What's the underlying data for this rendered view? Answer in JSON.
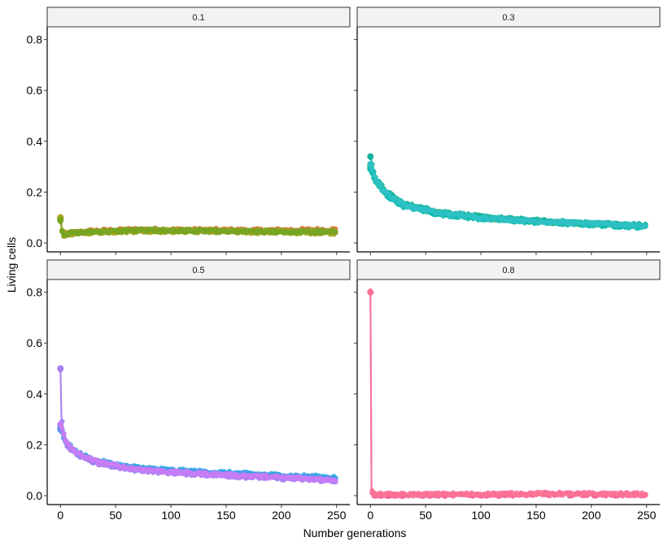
{
  "chart_data": {
    "type": "line",
    "xlabel": "Number generations",
    "ylabel": "Living cells",
    "xlim": [
      -12,
      262
    ],
    "ylim": [
      -0.035,
      0.85
    ],
    "x_ticks": [
      0,
      50,
      100,
      150,
      200,
      250
    ],
    "y_ticks": [
      0.0,
      0.2,
      0.4,
      0.6,
      0.8
    ],
    "x_tick_labels": [
      "0",
      "50",
      "100",
      "150",
      "200",
      "250"
    ],
    "y_tick_labels": [
      "0.0",
      "0.2",
      "0.4",
      "0.6",
      "0.8"
    ],
    "grid": false,
    "legend": "none",
    "panels": [
      {
        "label": "0.1",
        "series": [
          {
            "color": "#d97a35",
            "points": [
              [
                0,
                0.1
              ],
              [
                2,
                0.035
              ],
              [
                10,
                0.04
              ],
              [
                30,
                0.048
              ],
              [
                70,
                0.053
              ],
              [
                120,
                0.052
              ],
              [
                180,
                0.05
              ],
              [
                250,
                0.053
              ]
            ]
          },
          {
            "color": "#8aa22a",
            "points": [
              [
                0,
                0.095
              ],
              [
                2,
                0.032
              ],
              [
                10,
                0.038
              ],
              [
                30,
                0.045
              ],
              [
                70,
                0.05
              ],
              [
                120,
                0.049
              ],
              [
                180,
                0.046
              ],
              [
                250,
                0.045
              ]
            ]
          },
          {
            "color": "#a5a316",
            "points": [
              [
                0,
                0.1
              ],
              [
                2,
                0.03
              ],
              [
                10,
                0.036
              ],
              [
                30,
                0.042
              ],
              [
                70,
                0.047
              ],
              [
                120,
                0.046
              ],
              [
                180,
                0.043
              ],
              [
                250,
                0.04
              ]
            ]
          },
          {
            "color": "#77a522",
            "points": [
              [
                0,
                0.09
              ],
              [
                2,
                0.034
              ],
              [
                10,
                0.039
              ],
              [
                30,
                0.044
              ],
              [
                70,
                0.049
              ],
              [
                120,
                0.047
              ],
              [
                180,
                0.044
              ],
              [
                250,
                0.042
              ]
            ]
          }
        ]
      },
      {
        "label": "0.3",
        "series": [
          {
            "color": "#2fb34a",
            "points": [
              [
                0,
                0.3
              ],
              [
                5,
                0.24
              ],
              [
                15,
                0.19
              ],
              [
                30,
                0.15
              ],
              [
                60,
                0.12
              ],
              [
                100,
                0.1
              ],
              [
                150,
                0.085
              ],
              [
                200,
                0.075
              ],
              [
                250,
                0.065
              ]
            ]
          },
          {
            "color": "#15b59b",
            "points": [
              [
                0,
                0.34
              ],
              [
                5,
                0.25
              ],
              [
                15,
                0.2
              ],
              [
                30,
                0.155
              ],
              [
                60,
                0.125
              ],
              [
                100,
                0.103
              ],
              [
                150,
                0.088
              ],
              [
                200,
                0.078
              ],
              [
                250,
                0.07
              ]
            ]
          },
          {
            "color": "#0fbbb1",
            "points": [
              [
                0,
                0.29
              ],
              [
                5,
                0.235
              ],
              [
                15,
                0.185
              ],
              [
                30,
                0.145
              ],
              [
                60,
                0.115
              ],
              [
                100,
                0.095
              ],
              [
                150,
                0.082
              ],
              [
                200,
                0.072
              ],
              [
                250,
                0.062
              ]
            ]
          },
          {
            "color": "#2ec1c4",
            "points": [
              [
                0,
                0.31
              ],
              [
                5,
                0.245
              ],
              [
                15,
                0.195
              ],
              [
                30,
                0.15
              ],
              [
                60,
                0.12
              ],
              [
                100,
                0.1
              ],
              [
                150,
                0.086
              ],
              [
                200,
                0.076
              ],
              [
                250,
                0.068
              ]
            ]
          }
        ]
      },
      {
        "label": "0.5",
        "series": [
          {
            "color": "#29a8e0",
            "points": [
              [
                0,
                0.27
              ],
              [
                5,
                0.21
              ],
              [
                15,
                0.17
              ],
              [
                30,
                0.14
              ],
              [
                60,
                0.115
              ],
              [
                100,
                0.1
              ],
              [
                150,
                0.09
              ],
              [
                200,
                0.08
              ],
              [
                250,
                0.072
              ]
            ]
          },
          {
            "color": "#5b93f0",
            "points": [
              [
                0,
                0.26
              ],
              [
                5,
                0.205
              ],
              [
                15,
                0.165
              ],
              [
                30,
                0.135
              ],
              [
                60,
                0.11
              ],
              [
                100,
                0.095
              ],
              [
                150,
                0.085
              ],
              [
                200,
                0.075
              ],
              [
                250,
                0.065
              ]
            ]
          },
          {
            "color": "#a77ff2",
            "points": [
              [
                0,
                0.5
              ],
              [
                1,
                0.3
              ],
              [
                5,
                0.2
              ],
              [
                15,
                0.16
              ],
              [
                30,
                0.13
              ],
              [
                60,
                0.105
              ],
              [
                100,
                0.09
              ],
              [
                150,
                0.078
              ],
              [
                200,
                0.068
              ],
              [
                250,
                0.058
              ]
            ]
          },
          {
            "color": "#c77cf5",
            "points": [
              [
                0,
                0.28
              ],
              [
                5,
                0.21
              ],
              [
                15,
                0.168
              ],
              [
                30,
                0.138
              ],
              [
                60,
                0.11
              ],
              [
                100,
                0.093
              ],
              [
                150,
                0.082
              ],
              [
                200,
                0.072
              ],
              [
                250,
                0.062
              ]
            ]
          }
        ]
      },
      {
        "label": "0.8",
        "series": [
          {
            "color": "#f566a0",
            "points": [
              [
                0,
                0.8
              ],
              [
                1,
                0.02
              ],
              [
                3,
                0.003
              ],
              [
                10,
                0.002
              ],
              [
                100,
                0.003
              ],
              [
                150,
                0.005
              ],
              [
                200,
                0.004
              ],
              [
                250,
                0.004
              ]
            ]
          },
          {
            "color": "#fb7295",
            "points": [
              [
                0,
                0.8
              ],
              [
                1,
                0.03
              ],
              [
                3,
                0.006
              ],
              [
                10,
                0.004
              ],
              [
                100,
                0.006
              ],
              [
                150,
                0.008
              ],
              [
                200,
                0.007
              ],
              [
                250,
                0.006
              ]
            ]
          }
        ]
      }
    ]
  }
}
